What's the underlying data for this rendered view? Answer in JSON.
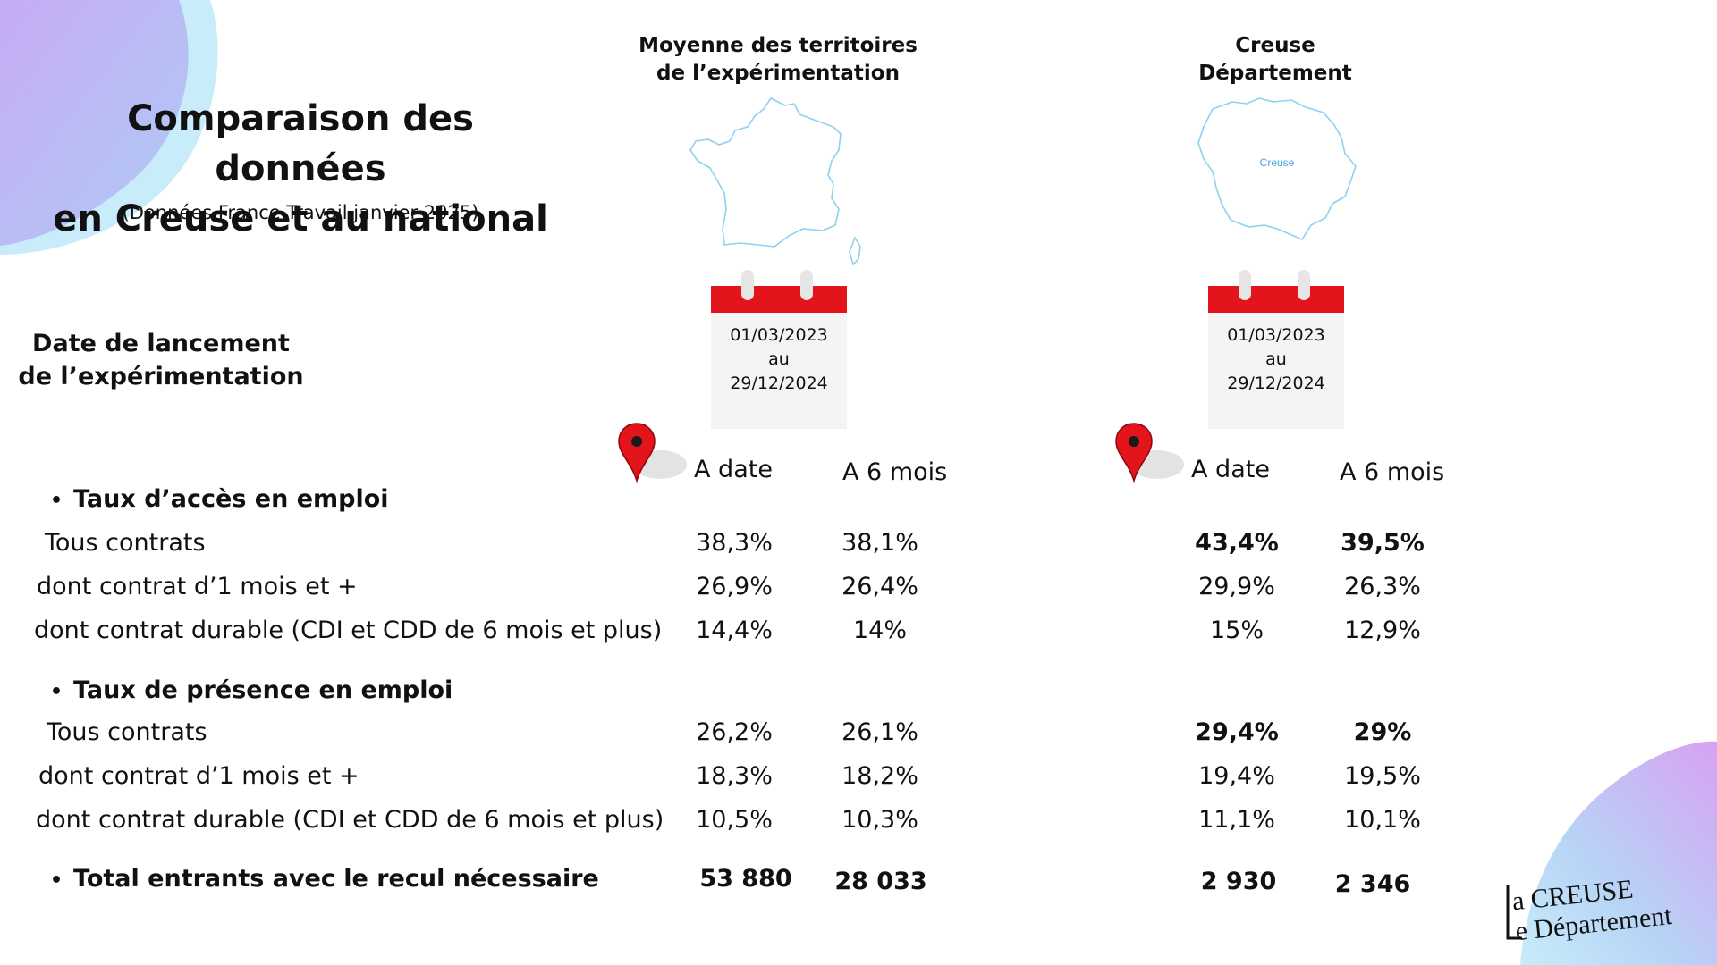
{
  "title_line1": "Comparaison des données",
  "title_line2": "en Creuse et au national",
  "subtitle": "(Données France Travail janvier 2025)",
  "columns": [
    {
      "line1": "Moyenne des territoires",
      "line2": "de l’expérimentation",
      "map_label": ""
    },
    {
      "line1": "Creuse",
      "line2": "Département",
      "map_label": "Creuse"
    }
  ],
  "launch": {
    "label_line1": "Date de lancement",
    "label_line2": "de l’expérimentation",
    "national": {
      "start": "01/03/2023",
      "mid": "au",
      "end": "29/12/2024"
    },
    "creuse": {
      "start": "01/03/2023",
      "mid": "au",
      "end": "29/12/2024"
    }
  },
  "subheaders": {
    "a_date": "A date",
    "a_6_mois": "A 6 mois"
  },
  "sections": {
    "acces": {
      "title": "Taux d’accès en emploi",
      "rows": [
        {
          "label": "Tous contrats",
          "nat_date": "38,3%",
          "nat_6": "38,1%",
          "cre_date": "43,4%",
          "cre_6": "39,5%"
        },
        {
          "label": "dont contrat d’1 mois et +",
          "nat_date": "26,9%",
          "nat_6": "26,4%",
          "cre_date": "29,9%",
          "cre_6": "26,3%"
        },
        {
          "label": "dont contrat durable (CDI et CDD de 6 mois et plus)",
          "nat_date": "14,4%",
          "nat_6": "14%",
          "cre_date": "15%",
          "cre_6": "12,9%"
        }
      ]
    },
    "presence": {
      "title": "Taux de présence en emploi",
      "rows": [
        {
          "label": "Tous contrats",
          "nat_date": "26,2%",
          "nat_6": "26,1%",
          "cre_date": "29,4%",
          "cre_6": "29%"
        },
        {
          "label": "dont contrat d’1 mois et +",
          "nat_date": "18,3%",
          "nat_6": "18,2%",
          "cre_date": "19,4%",
          "cre_6": "19,5%"
        },
        {
          "label": "dont contrat durable (CDI et CDD de 6 mois et plus)",
          "nat_date": "10,5%",
          "nat_6": "10,3%",
          "cre_date": "11,1%",
          "cre_6": "10,1%"
        }
      ]
    },
    "total": {
      "title": "Total entrants avec le recul nécessaire",
      "nat_date": "53 880",
      "nat_6": "28 033",
      "cre_date": "2 930",
      "cre_6": "2 346"
    }
  },
  "logo": {
    "line1": "a CREUSE",
    "line2": "e Département"
  },
  "icons": {
    "marker": "map-pin-icon",
    "calendar": "calendar-icon"
  },
  "colors": {
    "accent_red": "#e3141b",
    "map_blue": "#6fc3ec",
    "blob_purple": "#c39af0",
    "blob_blue": "#b9e6f8"
  }
}
